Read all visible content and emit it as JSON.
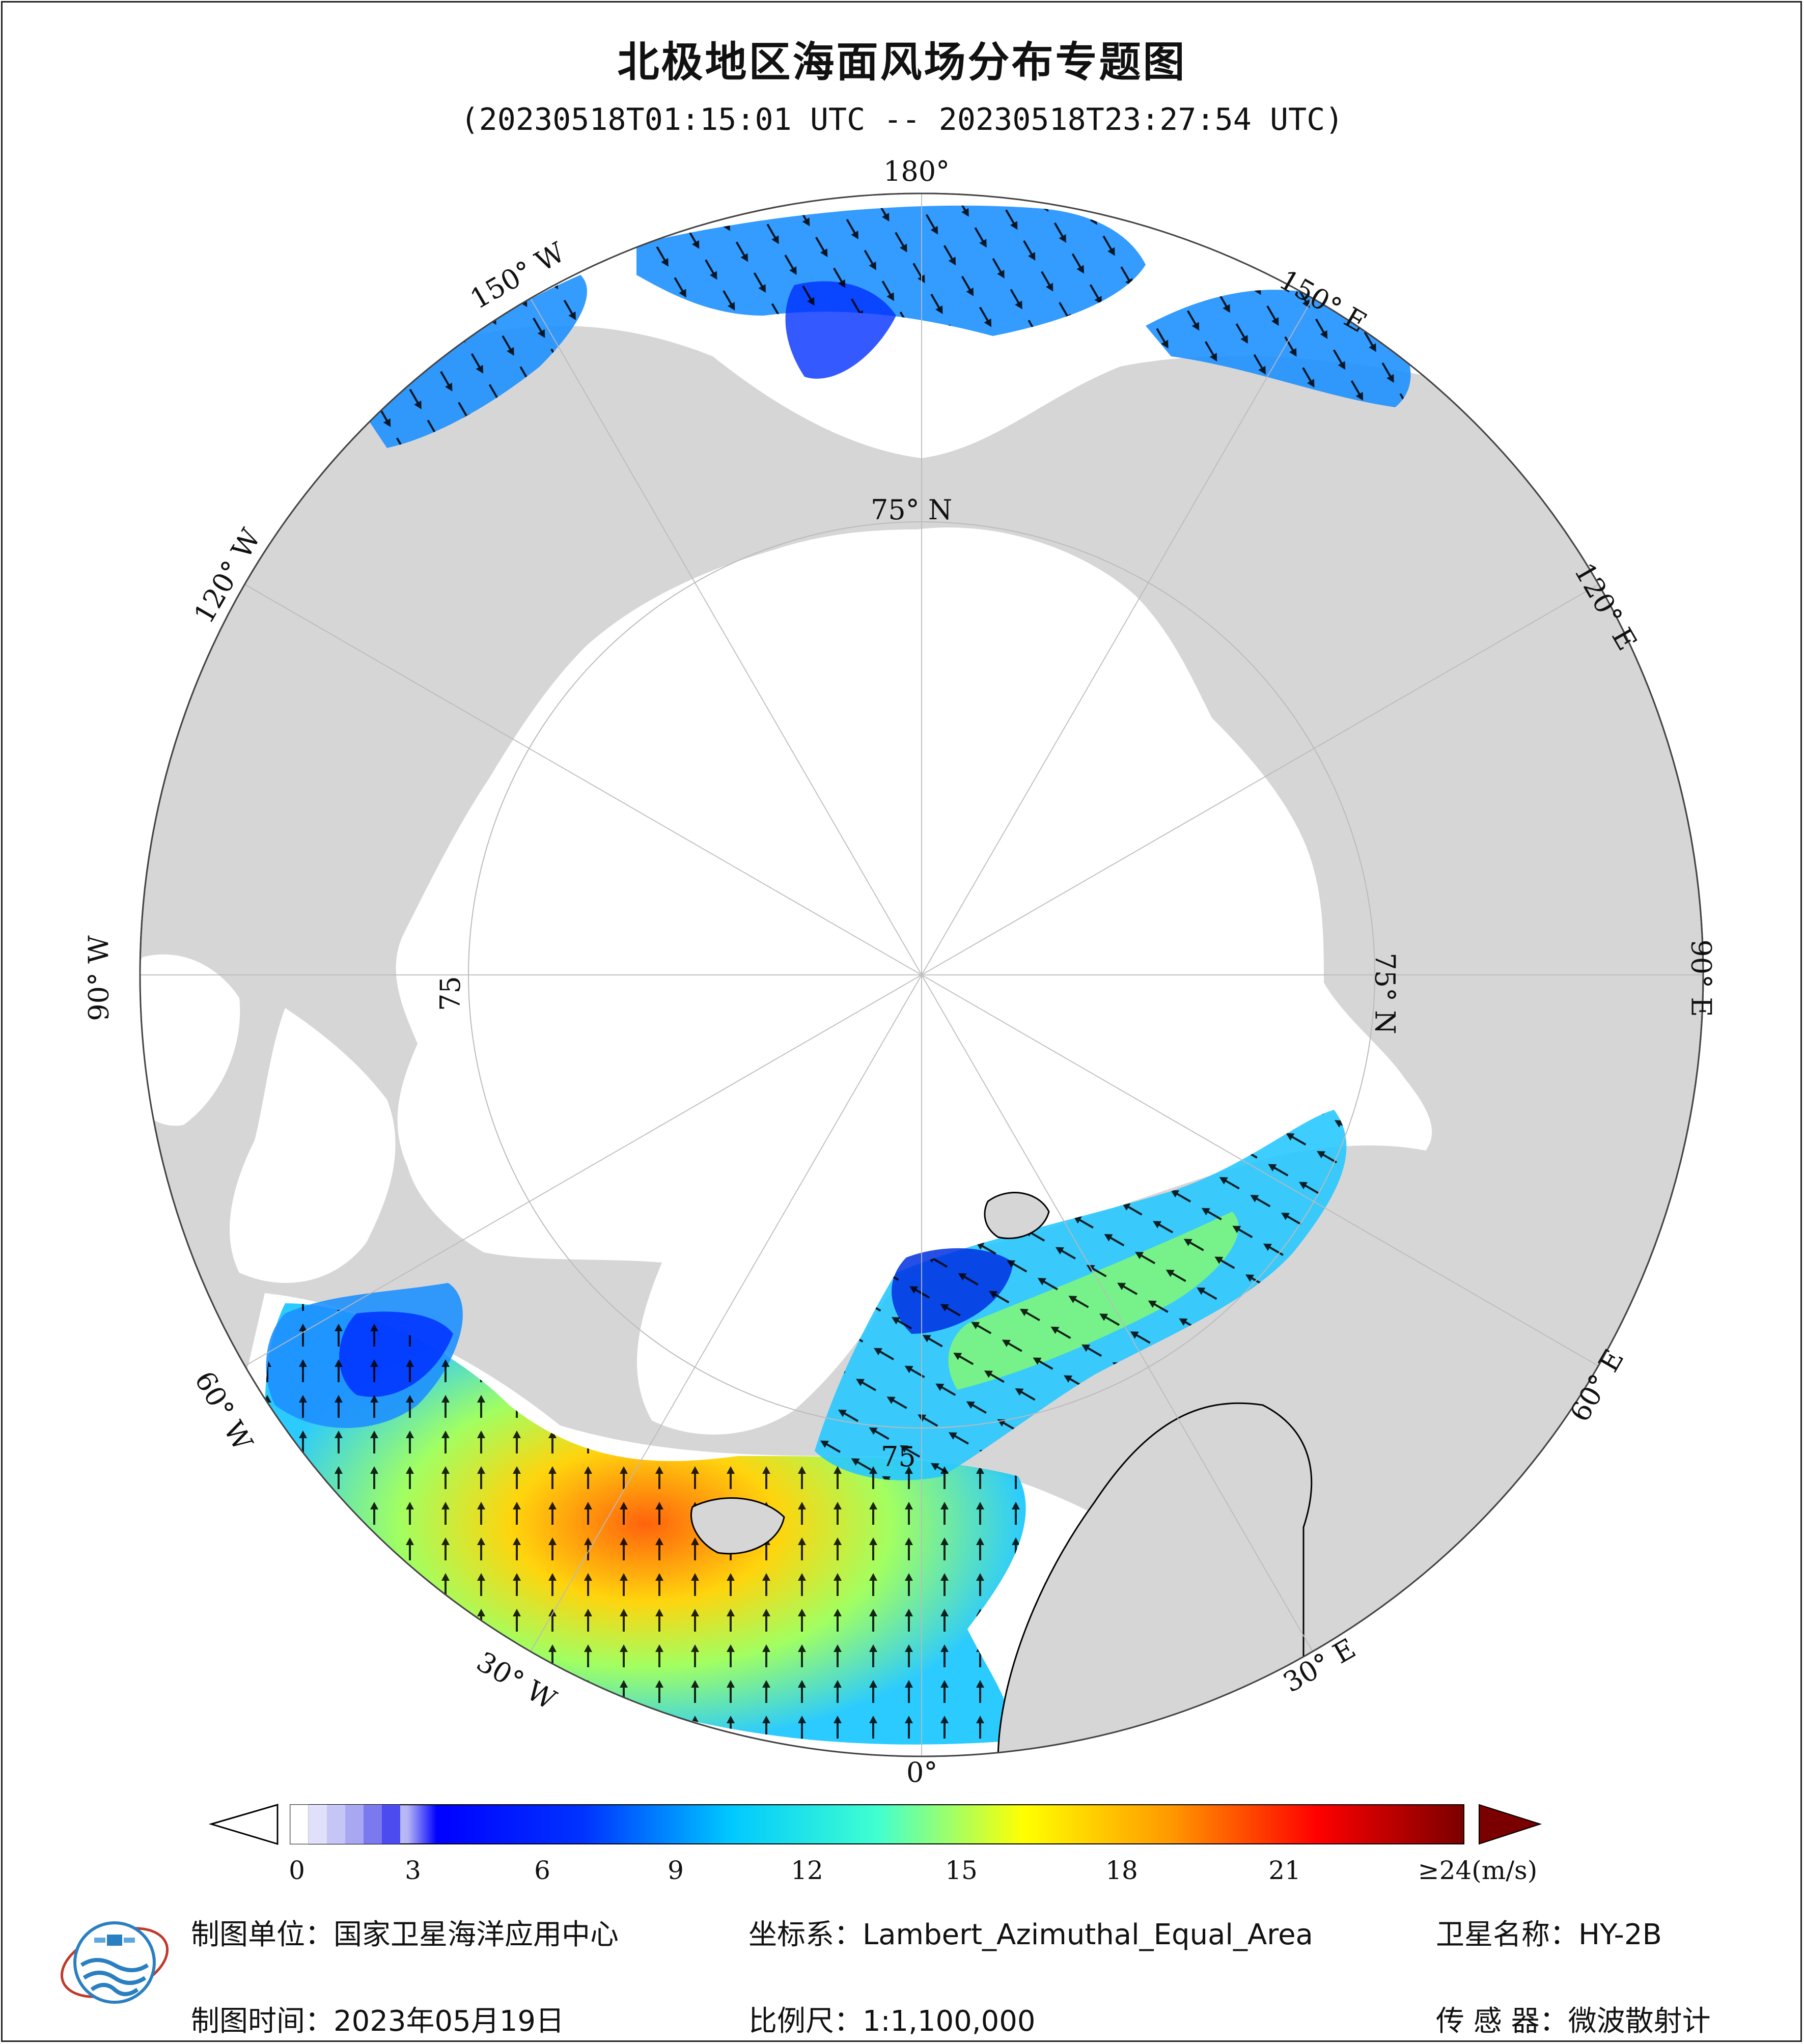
{
  "title": "北极地区海面风场分布专题图",
  "subtitle": "(20230518T01:15:01 UTC -- 20230518T23:27:54 UTC)",
  "map": {
    "longitude_labels": {
      "lon_180": "180°",
      "lon_150W": "150° W",
      "lon_150E": "150° E",
      "lon_120W": "120° W",
      "lon_120E": "120° E",
      "lon_90W": "90° W",
      "lon_90E": "90° E",
      "lon_60W": "60° W",
      "lon_60E": "60° E",
      "lon_30W": "30° W",
      "lon_30E": "30° E",
      "lon_0": "0°"
    },
    "latitude_labels": {
      "lat_top": "75° N",
      "lat_right": "75° N",
      "lat_left": "75",
      "lat_bottom": "75"
    },
    "colors": {
      "land": "#d6d6d6",
      "ocean_ice": "#ffffff",
      "graticule": "#bbbbbb",
      "arrow": "#000000"
    }
  },
  "colorbar": {
    "unit_label": "≥24(m/s)",
    "ticks": [
      "0",
      "3",
      "6",
      "9",
      "12",
      "15",
      "18",
      "21"
    ],
    "range": [
      0,
      24
    ],
    "stops": [
      "#ffffff",
      "#a7a7f0",
      "#0000ff",
      "#1e90ff",
      "#00ffff",
      "#9cff5a",
      "#ffff00",
      "#ff9900",
      "#ff0000",
      "#8b0000"
    ]
  },
  "footer": {
    "producer": "制图单位：国家卫星海洋应用中心",
    "date": "制图时间：2023年05月19日",
    "projection": "坐标系：Lambert_Azimuthal_Equal_Area",
    "scale": "比例尺：1:1,100,000",
    "satellite": "卫星名称：HY-2B",
    "sensor": "传 感 器：微波散射计"
  }
}
